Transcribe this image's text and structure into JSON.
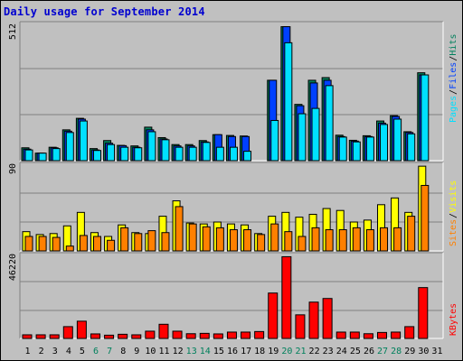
{
  "title": "Daily usage for September 2014",
  "colors": {
    "hits": "#00805c",
    "files": "#0040ff",
    "pages": "#00e0ff",
    "visits": "#ffff00",
    "sites": "#ff8000",
    "kbytes": "#ff0000",
    "weekend_day": "#00805c",
    "weekday_day": "#000000"
  },
  "chart_data": [
    {
      "type": "bar",
      "panel": "hits-files-pages",
      "ymax_label": "512",
      "ylim": [
        0,
        512
      ],
      "categories": [
        "1",
        "2",
        "3",
        "4",
        "5",
        "6",
        "7",
        "8",
        "9",
        "10",
        "11",
        "12",
        "13",
        "14",
        "15",
        "16",
        "17",
        "18",
        "19",
        "20",
        "21",
        "22",
        "23",
        "24",
        "25",
        "26",
        "27",
        "28",
        "29",
        "30",
        "31"
      ],
      "series": [
        {
          "name": "Hits",
          "values": [
            48,
            28,
            50,
            115,
            158,
            45,
            75,
            57,
            55,
            125,
            86,
            60,
            60,
            75,
            97,
            94,
            92,
            0,
            300,
            500,
            210,
            300,
            310,
            95,
            76,
            93,
            148,
            168,
            108,
            328,
            0
          ]
        },
        {
          "name": "Files",
          "values": [
            43,
            28,
            48,
            110,
            155,
            40,
            65,
            56,
            50,
            115,
            81,
            55,
            55,
            70,
            97,
            90,
            90,
            0,
            300,
            500,
            205,
            290,
            300,
            90,
            73,
            90,
            140,
            165,
            105,
            320,
            0
          ]
        },
        {
          "name": "Pages",
          "values": [
            40,
            28,
            45,
            105,
            148,
            38,
            60,
            50,
            48,
            108,
            78,
            50,
            50,
            68,
            50,
            50,
            35,
            0,
            150,
            440,
            175,
            195,
            280,
            88,
            70,
            88,
            135,
            155,
            100,
            320,
            0
          ]
        }
      ],
      "legend": [
        "Pages",
        "Files",
        "Hits"
      ]
    },
    {
      "type": "bar",
      "panel": "visits-sites",
      "ymax_label": "90",
      "ylim": [
        0,
        90
      ],
      "categories": [
        "1",
        "2",
        "3",
        "4",
        "5",
        "6",
        "7",
        "8",
        "9",
        "10",
        "11",
        "12",
        "13",
        "14",
        "15",
        "16",
        "17",
        "18",
        "19",
        "20",
        "21",
        "22",
        "23",
        "24",
        "25",
        "26",
        "27",
        "28",
        "29",
        "30",
        "31"
      ],
      "series": [
        {
          "name": "Visits",
          "values": [
            20,
            17,
            18,
            26,
            40,
            19,
            15,
            27,
            19,
            18,
            36,
            52,
            29,
            28,
            30,
            28,
            27,
            18,
            36,
            40,
            35,
            38,
            44,
            42,
            30,
            32,
            48,
            55,
            40,
            88,
            0
          ]
        },
        {
          "name": "Sites",
          "values": [
            15,
            15,
            14,
            5,
            16,
            15,
            11,
            24,
            18,
            21,
            19,
            46,
            28,
            25,
            24,
            22,
            22,
            17,
            28,
            20,
            15,
            24,
            22,
            22,
            24,
            22,
            24,
            24,
            36,
            68,
            0
          ]
        }
      ],
      "legend": [
        "Sites",
        "Visits"
      ]
    },
    {
      "type": "bar",
      "panel": "kbytes",
      "ymax_label": "46220",
      "ylim": [
        0,
        46220
      ],
      "categories": [
        "1",
        "2",
        "3",
        "4",
        "5",
        "6",
        "7",
        "8",
        "9",
        "10",
        "11",
        "12",
        "13",
        "14",
        "15",
        "16",
        "17",
        "18",
        "19",
        "20",
        "21",
        "22",
        "23",
        "24",
        "25",
        "26",
        "27",
        "28",
        "29",
        "30",
        "31"
      ],
      "series": [
        {
          "name": "KBytes",
          "values": [
            2000,
            2000,
            2000,
            6500,
            9500,
            2500,
            1800,
            2300,
            2000,
            4000,
            7800,
            4000,
            2600,
            2800,
            2500,
            3500,
            3500,
            3800,
            25000,
            45000,
            13000,
            20000,
            22000,
            3500,
            3500,
            2600,
            3300,
            3500,
            6500,
            28000,
            0
          ]
        }
      ],
      "legend": [
        "KBytes"
      ]
    }
  ],
  "days": [
    {
      "label": "1",
      "weekend": false
    },
    {
      "label": "2",
      "weekend": false
    },
    {
      "label": "3",
      "weekend": false
    },
    {
      "label": "4",
      "weekend": false
    },
    {
      "label": "5",
      "weekend": false
    },
    {
      "label": "6",
      "weekend": true
    },
    {
      "label": "7",
      "weekend": true
    },
    {
      "label": "8",
      "weekend": false
    },
    {
      "label": "9",
      "weekend": false
    },
    {
      "label": "10",
      "weekend": false
    },
    {
      "label": "11",
      "weekend": false
    },
    {
      "label": "12",
      "weekend": false
    },
    {
      "label": "13",
      "weekend": true
    },
    {
      "label": "14",
      "weekend": true
    },
    {
      "label": "15",
      "weekend": false
    },
    {
      "label": "16",
      "weekend": false
    },
    {
      "label": "17",
      "weekend": false
    },
    {
      "label": "18",
      "weekend": false
    },
    {
      "label": "19",
      "weekend": false
    },
    {
      "label": "20",
      "weekend": true
    },
    {
      "label": "21",
      "weekend": true
    },
    {
      "label": "22",
      "weekend": false
    },
    {
      "label": "23",
      "weekend": false
    },
    {
      "label": "24",
      "weekend": false
    },
    {
      "label": "25",
      "weekend": false
    },
    {
      "label": "26",
      "weekend": false
    },
    {
      "label": "27",
      "weekend": true
    },
    {
      "label": "28",
      "weekend": true
    },
    {
      "label": "29",
      "weekend": false
    },
    {
      "label": "30",
      "weekend": false
    },
    {
      "label": "31",
      "weekend": false
    }
  ]
}
